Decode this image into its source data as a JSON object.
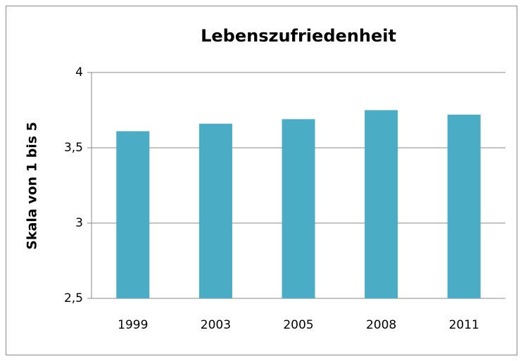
{
  "chart_data": {
    "type": "bar",
    "title": "Lebenszufriedenheit",
    "y_label": "Skala von 1 bis 5",
    "categories": [
      "1999",
      "2003",
      "2005",
      "2008",
      "2011"
    ],
    "values": [
      3.61,
      3.66,
      3.69,
      3.75,
      3.72
    ],
    "color": "#4bacc6",
    "ylim": [
      2.5,
      4
    ],
    "yticks": [
      {
        "value": 2.5,
        "label": "2,5"
      },
      3,
      {
        "value": 3.5,
        "label": "3,5"
      },
      4
    ],
    "grid": true
  }
}
